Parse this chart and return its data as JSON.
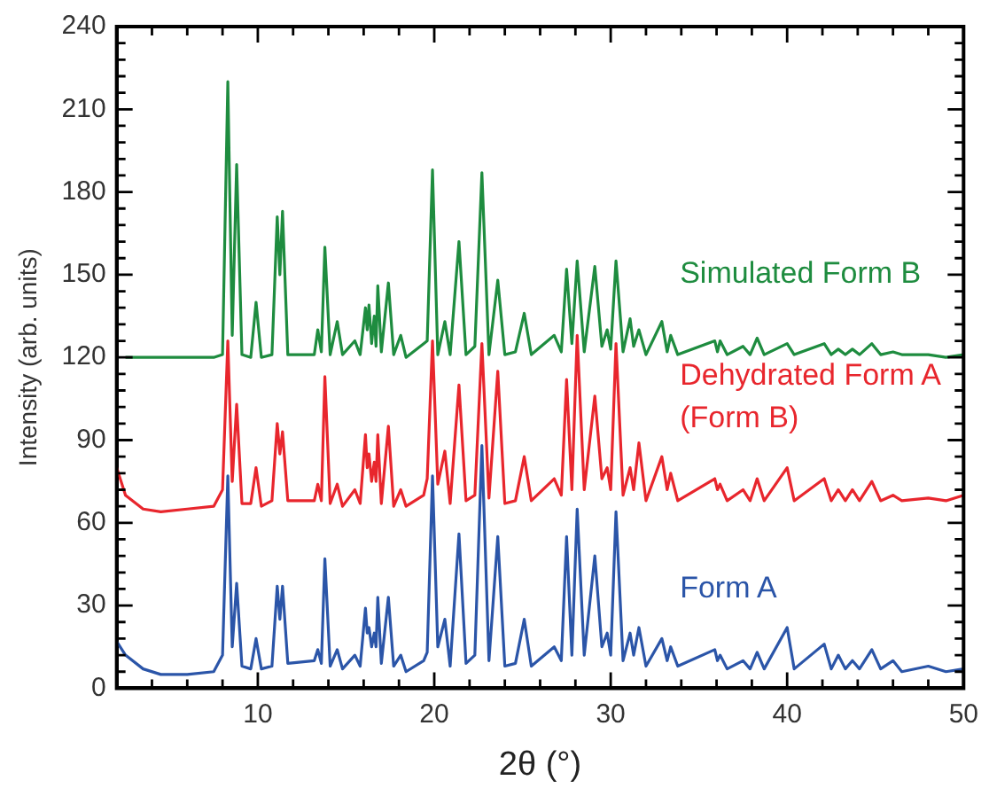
{
  "chart_data": {
    "type": "line",
    "xlabel": "2θ (°)",
    "ylabel": "Intensity (arb. units)",
    "x": [
      2.0,
      2.5,
      3.5,
      4.5,
      6,
      7.5,
      8.0,
      8.3,
      8.55,
      8.8,
      9.1,
      9.6,
      9.9,
      10.2,
      10.8,
      11.1,
      11.25,
      11.4,
      11.7,
      13.2,
      13.4,
      13.6,
      13.8,
      14.1,
      14.5,
      14.8,
      15.5,
      15.8,
      16.1,
      16.2,
      16.3,
      16.45,
      16.6,
      16.7,
      16.8,
      17.0,
      17.4,
      17.7,
      18.1,
      18.4,
      19.4,
      19.6,
      19.9,
      20.2,
      20.6,
      20.9,
      21.4,
      21.8,
      22.3,
      22.7,
      23.1,
      23.6,
      24.0,
      24.6,
      25.1,
      25.5,
      26.8,
      27.2,
      27.5,
      27.8,
      28.1,
      28.5,
      29.1,
      29.5,
      29.8,
      30.0,
      30.3,
      30.7,
      31.1,
      31.3,
      31.6,
      32.0,
      32.9,
      33.2,
      33.4,
      33.8,
      35.9,
      36.05,
      36.2,
      36.6,
      37.5,
      37.9,
      38.3,
      38.7,
      40.0,
      40.4,
      42.1,
      42.5,
      42.9,
      43.3,
      43.7,
      44.1,
      44.8,
      45.3,
      46.0,
      46.5,
      48,
      49,
      50
    ],
    "series": [
      {
        "name": "Simulated Form B",
        "color": "#1e8c3f",
        "values": [
          null,
          120,
          120,
          120,
          120,
          120,
          121,
          220,
          128,
          190,
          121,
          120,
          140,
          120,
          121,
          171,
          150,
          173,
          121,
          121,
          130,
          122,
          160,
          121,
          133,
          121,
          126,
          121,
          138,
          130,
          139,
          125,
          135,
          124,
          146,
          122,
          147,
          121,
          128,
          120,
          125,
          126,
          188,
          121,
          133,
          121,
          162,
          121,
          124,
          187,
          121,
          148,
          121,
          122,
          136,
          121,
          128,
          122,
          152,
          125,
          155,
          122,
          153,
          124,
          130,
          123,
          155,
          122,
          134,
          124,
          130,
          121,
          133,
          122,
          128,
          121,
          126,
          122,
          126,
          121,
          124,
          121,
          127,
          121,
          125,
          121,
          125,
          121,
          123,
          121,
          123,
          121,
          125,
          121,
          122,
          121,
          121,
          120,
          121
        ]
      },
      {
        "name": "Dehydrated Form A\n(Form B)",
        "color": "#e8262d",
        "values": [
          80,
          70,
          65,
          64,
          65,
          66,
          72,
          126,
          75,
          103,
          67,
          67,
          80,
          66,
          68,
          96,
          85,
          93,
          68,
          68,
          74,
          68,
          113,
          67,
          74,
          66,
          72,
          67,
          92,
          80,
          85,
          75,
          82,
          75,
          92,
          67,
          95,
          66,
          72,
          66,
          70,
          76,
          126,
          74,
          86,
          67,
          110,
          68,
          70,
          125,
          69,
          115,
          67,
          68,
          84,
          68,
          76,
          70,
          112,
          72,
          128,
          72,
          106,
          76,
          80,
          72,
          125,
          70,
          80,
          72,
          89,
          68,
          84,
          72,
          78,
          68,
          76,
          72,
          74,
          68,
          72,
          68,
          76,
          68,
          80,
          68,
          76,
          68,
          72,
          68,
          72,
          68,
          75,
          68,
          70,
          68,
          69,
          68,
          70
        ]
      },
      {
        "name": "Form A",
        "color": "#2b55a8",
        "values": [
          17,
          12,
          7,
          5,
          5,
          6,
          12,
          77,
          15,
          38,
          8,
          7,
          18,
          7,
          8,
          37,
          25,
          37,
          9,
          10,
          14,
          9,
          47,
          8,
          14,
          7,
          12,
          8,
          29,
          20,
          22,
          15,
          20,
          15,
          33,
          9,
          33,
          8,
          12,
          6,
          10,
          13,
          77,
          15,
          25,
          8,
          56,
          9,
          12,
          88,
          10,
          55,
          8,
          9,
          25,
          8,
          15,
          10,
          55,
          12,
          65,
          12,
          48,
          15,
          20,
          12,
          64,
          10,
          20,
          12,
          22,
          8,
          18,
          10,
          15,
          8,
          14,
          10,
          12,
          7,
          10,
          7,
          13,
          7,
          22,
          7,
          16,
          7,
          12,
          7,
          10,
          7,
          14,
          7,
          10,
          6,
          8,
          6,
          7
        ]
      }
    ],
    "xlim": [
      2,
      50
    ],
    "xticks": [
      {
        "value": 4,
        "label": null
      },
      {
        "value": 6,
        "label": null
      },
      {
        "value": 8,
        "label": null
      },
      10,
      {
        "value": 12,
        "label": null
      },
      {
        "value": 14,
        "label": null
      },
      {
        "value": 16,
        "label": null
      },
      {
        "value": 18,
        "label": null
      },
      20,
      {
        "value": 22,
        "label": null
      },
      {
        "value": 24,
        "label": null
      },
      {
        "value": 26,
        "label": null
      },
      {
        "value": 28,
        "label": null
      },
      30,
      {
        "value": 32,
        "label": null
      },
      {
        "value": 34,
        "label": null
      },
      {
        "value": 36,
        "label": null
      },
      {
        "value": 38,
        "label": null
      },
      40,
      {
        "value": 42,
        "label": null
      },
      {
        "value": 44,
        "label": null
      },
      {
        "value": 46,
        "label": null
      },
      {
        "value": 48,
        "label": null
      },
      50
    ],
    "ylim": [
      0,
      240
    ],
    "yticks": [
      0,
      {
        "value": 6,
        "label": null
      },
      {
        "value": 12,
        "label": null
      },
      {
        "value": 18,
        "label": null
      },
      {
        "value": 24,
        "label": null
      },
      30,
      {
        "value": 36,
        "label": null
      },
      {
        "value": 42,
        "label": null
      },
      {
        "value": 48,
        "label": null
      },
      {
        "value": 54,
        "label": null
      },
      60,
      {
        "value": 66,
        "label": null
      },
      {
        "value": 72,
        "label": null
      },
      {
        "value": 78,
        "label": null
      },
      {
        "value": 84,
        "label": null
      },
      90,
      {
        "value": 96,
        "label": null
      },
      {
        "value": 102,
        "label": null
      },
      {
        "value": 108,
        "label": null
      },
      {
        "value": 114,
        "label": null
      },
      120,
      {
        "value": 126,
        "label": null
      },
      {
        "value": 132,
        "label": null
      },
      {
        "value": 138,
        "label": null
      },
      {
        "value": 144,
        "label": null
      },
      150,
      {
        "value": 156,
        "label": null
      },
      {
        "value": 162,
        "label": null
      },
      {
        "value": 168,
        "label": null
      },
      {
        "value": 174,
        "label": null
      },
      180,
      {
        "value": 186,
        "label": null
      },
      {
        "value": 192,
        "label": null
      },
      {
        "value": 198,
        "label": null
      },
      {
        "value": 204,
        "label": null
      },
      210,
      {
        "value": 216,
        "label": null
      },
      {
        "value": 222,
        "label": null
      },
      {
        "value": 228,
        "label": null
      },
      {
        "value": 234,
        "label": null
      },
      240
    ],
    "grid": false,
    "legend": false,
    "marker": "none",
    "line_style": "solid"
  }
}
